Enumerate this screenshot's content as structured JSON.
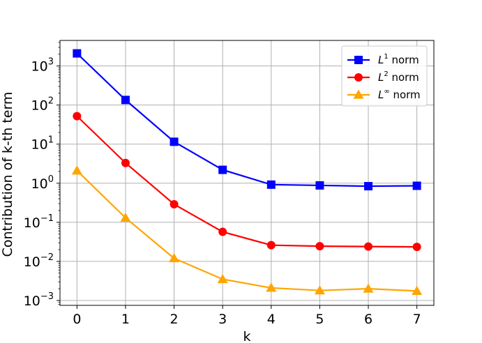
{
  "chart_data": {
    "type": "line",
    "xlabel": "k",
    "ylabel": "Contribution of k-th term",
    "x": [
      0,
      1,
      2,
      3,
      4,
      5,
      6,
      7
    ],
    "xlim": [
      -0.35,
      7.35
    ],
    "ylim": [
      0.00075,
      4500
    ],
    "yscale": "log",
    "grid": true,
    "legend_position": "top-right",
    "xticks": [
      "0",
      "1",
      "2",
      "3",
      "4",
      "5",
      "6",
      "7"
    ],
    "yticks": [
      {
        "value": 0.001,
        "mant": "10",
        "exp": "−3"
      },
      {
        "value": 0.01,
        "mant": "10",
        "exp": "−2"
      },
      {
        "value": 0.1,
        "mant": "10",
        "exp": "−1"
      },
      {
        "value": 1,
        "mant": "10",
        "exp": "0"
      },
      {
        "value": 10,
        "mant": "10",
        "exp": "1"
      },
      {
        "value": 100,
        "mant": "10",
        "exp": "2"
      },
      {
        "value": 1000,
        "mant": "10",
        "exp": "3"
      }
    ],
    "series": [
      {
        "name": "L1 norm",
        "legend_base": "L",
        "legend_sup": "1",
        "legend_suffix": " norm",
        "color": "#0000ff",
        "marker": "square",
        "values": [
          2100,
          135,
          11.5,
          2.2,
          0.92,
          0.88,
          0.84,
          0.86
        ]
      },
      {
        "name": "L2 norm",
        "legend_base": "L",
        "legend_sup": "2",
        "legend_suffix": " norm",
        "color": "#ff0000",
        "marker": "circle",
        "values": [
          52,
          3.3,
          0.29,
          0.057,
          0.026,
          0.0245,
          0.024,
          0.0235
        ]
      },
      {
        "name": "L∞ norm",
        "legend_base": "L",
        "legend_sup": "∞",
        "legend_suffix": " norm",
        "color": "#ffa500",
        "marker": "triangle",
        "values": [
          2.1,
          0.13,
          0.012,
          0.0035,
          0.0021,
          0.0018,
          0.002,
          0.00175
        ]
      }
    ]
  }
}
